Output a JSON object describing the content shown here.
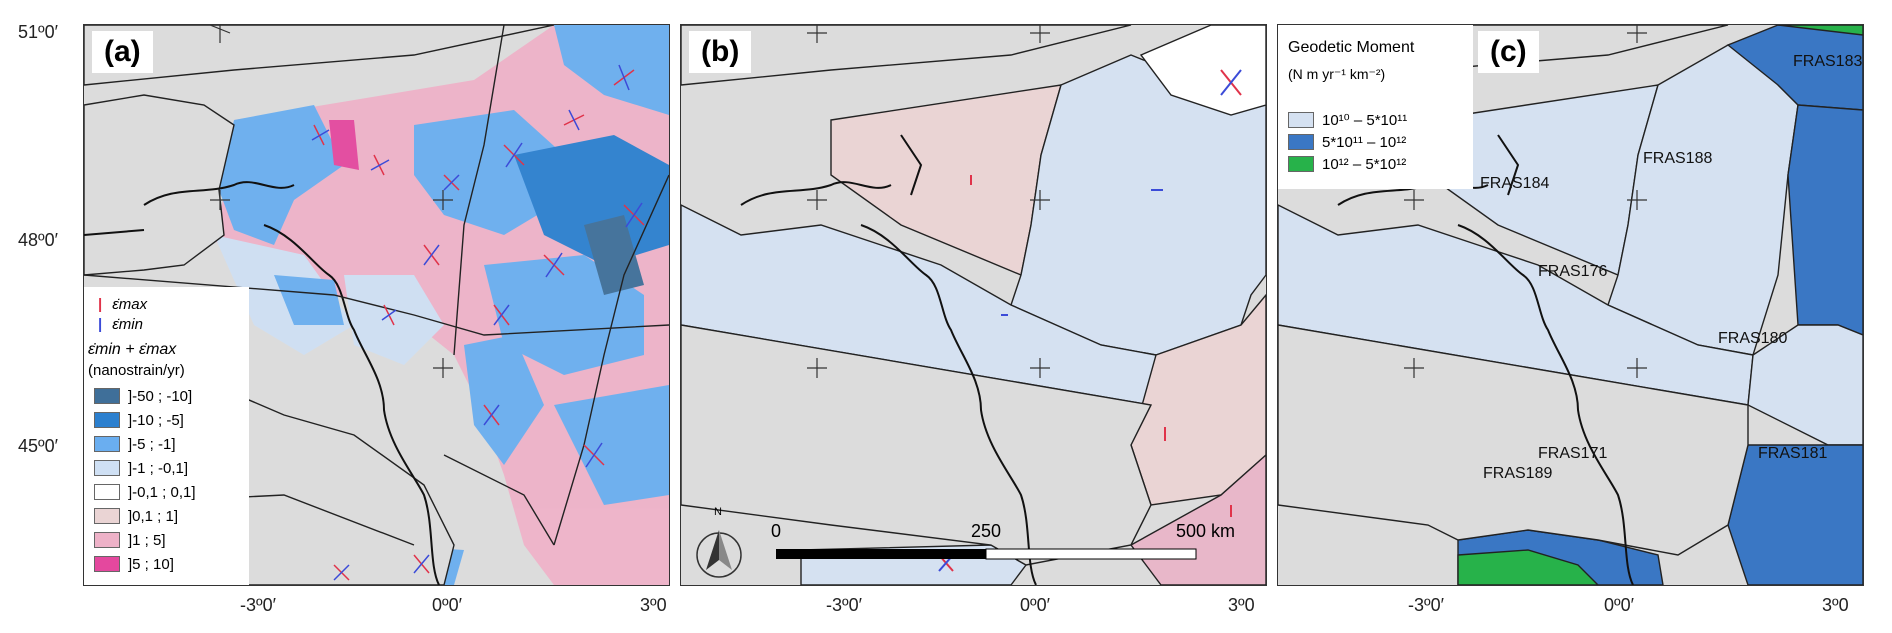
{
  "axes": {
    "lat_labels": [
      "51º0′",
      "48º0′",
      "45º0′"
    ],
    "lon_labels": [
      "-3º0′",
      "0º0′",
      "3º0"
    ]
  },
  "panel_a": {
    "tag": "(a)",
    "legend": {
      "emax_label": "ε̇max",
      "emin_label": "ε̇min",
      "title": "ε̇min + ε̇max",
      "units": "(nanostrain/yr)",
      "classes": [
        {
          "label": "]-50 ; -10]",
          "color": "#3f6f99"
        },
        {
          "label": "]-10 ; -5]",
          "color": "#2c80cf"
        },
        {
          "label": "]-5 ; -1]",
          "color": "#6aaef0"
        },
        {
          "label": "]-1 ; -0,1]",
          "color": "#cfe0f4"
        },
        {
          "label": "]-0,1 ; 0,1]",
          "color": "#ffffff"
        },
        {
          "label": "]0,1 ; 1]",
          "color": "#ead4d4"
        },
        {
          "label": "]1 ; 5]",
          "color": "#eeb2c8"
        },
        {
          "label": "]5 ; 10]",
          "color": "#e4489e"
        }
      ]
    }
  },
  "panel_b": {
    "tag": "(b)",
    "scale": {
      "start": "0",
      "mid": "250",
      "end": "500 km"
    },
    "north": "N"
  },
  "panel_c": {
    "tag": "(c)",
    "legend": {
      "title": "Geodetic Moment",
      "units": "(N m yr⁻¹ km⁻²)",
      "classes": [
        {
          "label": "10¹⁰ – 5*10¹¹",
          "color": "#d5e1f1"
        },
        {
          "label": "5*10¹¹ – 10¹²",
          "color": "#3a77c4"
        },
        {
          "label": "10¹² – 5*10¹²",
          "color": "#27b24a"
        }
      ]
    },
    "zones": [
      "FRAS183",
      "FRAS188",
      "FRAS184",
      "FRAS176",
      "FRAS180",
      "FRAS171",
      "FRAS181",
      "FRAS189"
    ]
  },
  "colors": {
    "land_grey": "#dcdcdc",
    "zone_light_blue": "#d5e1f1",
    "zone_pink": "#ead4d4",
    "zone_rose": "#e8b7c9",
    "zone_dark_blue": "#3a77c4",
    "zone_green": "#27b24a",
    "strain_max": "#e0334a",
    "strain_min": "#3b4bd8"
  }
}
